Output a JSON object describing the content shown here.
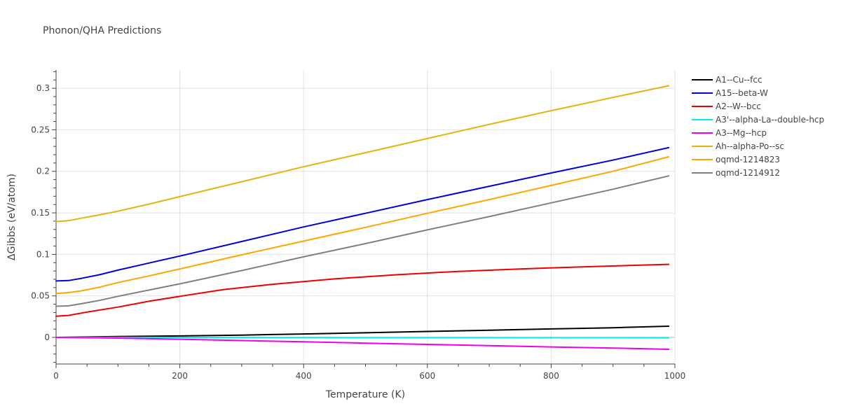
{
  "chart_data": {
    "type": "line",
    "title": "Phonon/QHA Predictions",
    "xlabel": "Temperature (K)",
    "ylabel": "ΔGibbs (eV/atom)",
    "xlim": [
      0,
      1000
    ],
    "ylim": [
      -0.032,
      0.322
    ],
    "x_ticks": [
      0,
      200,
      400,
      600,
      800,
      1000
    ],
    "x_tick_labels": [
      "0",
      "200",
      "400",
      "600",
      "800",
      "1000"
    ],
    "y_ticks": [
      0,
      0.05,
      0.1,
      0.15,
      0.2,
      0.25,
      0.3
    ],
    "y_tick_labels": [
      "0",
      "0.05",
      "0.1",
      "0.15",
      "0.2",
      "0.25",
      "0.3"
    ],
    "grid": true,
    "legend_position": "top-right",
    "series": [
      {
        "name": "A1--Cu--fcc",
        "color": "#000000",
        "x": [
          0,
          20,
          100,
          200,
          300,
          400,
          500,
          600,
          700,
          800,
          900,
          990
        ],
        "y": [
          0.0,
          0.0003,
          0.001,
          0.0018,
          0.0028,
          0.0042,
          0.0056,
          0.0072,
          0.0087,
          0.0102,
          0.0117,
          0.0135
        ]
      },
      {
        "name": "A15--beta-W",
        "color": "#0000dd",
        "x": [
          0,
          20,
          40,
          70,
          100,
          150,
          200,
          300,
          400,
          500,
          600,
          700,
          800,
          900,
          990
        ],
        "y": [
          0.068,
          0.0685,
          0.071,
          0.0755,
          0.081,
          0.0895,
          0.098,
          0.1155,
          0.133,
          0.1495,
          0.166,
          0.182,
          0.198,
          0.2135,
          0.2285
        ]
      },
      {
        "name": "A2--W--bcc",
        "color": "#ee0000",
        "x": [
          0,
          20,
          50,
          100,
          150,
          200,
          270,
          350,
          450,
          550,
          650,
          750,
          850,
          990
        ],
        "y": [
          0.0255,
          0.0265,
          0.0305,
          0.0365,
          0.0435,
          0.0495,
          0.0575,
          0.064,
          0.0705,
          0.0755,
          0.0795,
          0.0825,
          0.085,
          0.088
        ]
      },
      {
        "name": "A3'--alpha-La--double-hcp",
        "color": "#00eeee",
        "x": [
          0,
          200,
          400,
          600,
          800,
          990
        ],
        "y": [
          0.0,
          0.0,
          -0.0002,
          -0.0003,
          -0.0004,
          -0.0005
        ]
      },
      {
        "name": "A3--Mg--hcp",
        "color": "#ee00ee",
        "x": [
          0,
          100,
          200,
          300,
          400,
          500,
          600,
          700,
          800,
          900,
          990
        ],
        "y": [
          0.0,
          -0.0008,
          -0.0022,
          -0.0038,
          -0.0053,
          -0.0069,
          -0.0084,
          -0.0099,
          -0.0114,
          -0.0128,
          -0.0143
        ]
      },
      {
        "name": "Ah--alpha-Po--sc",
        "color": "#e6b30c",
        "x": [
          0,
          20,
          40,
          70,
          100,
          150,
          200,
          300,
          400,
          500,
          600,
          700,
          800,
          900,
          990
        ],
        "y": [
          0.1395,
          0.1405,
          0.1435,
          0.1475,
          0.152,
          0.1605,
          0.1695,
          0.1875,
          0.2055,
          0.2225,
          0.2395,
          0.2565,
          0.273,
          0.289,
          0.303
        ]
      },
      {
        "name": "oqmd-1214823",
        "color": "#ffa500",
        "x": [
          0,
          20,
          40,
          70,
          100,
          150,
          200,
          300,
          400,
          500,
          600,
          700,
          800,
          900,
          990
        ],
        "y": [
          0.053,
          0.054,
          0.056,
          0.0605,
          0.066,
          0.074,
          0.0825,
          0.0995,
          0.116,
          0.1325,
          0.1495,
          0.166,
          0.183,
          0.2,
          0.2175
        ]
      },
      {
        "name": "oqmd-1214912",
        "color": "#808080",
        "x": [
          0,
          20,
          40,
          70,
          100,
          150,
          200,
          300,
          400,
          500,
          600,
          700,
          800,
          900,
          990
        ],
        "y": [
          0.0375,
          0.038,
          0.0405,
          0.0445,
          0.0495,
          0.057,
          0.0645,
          0.0805,
          0.097,
          0.113,
          0.1295,
          0.1455,
          0.162,
          0.1785,
          0.1945
        ]
      }
    ]
  }
}
